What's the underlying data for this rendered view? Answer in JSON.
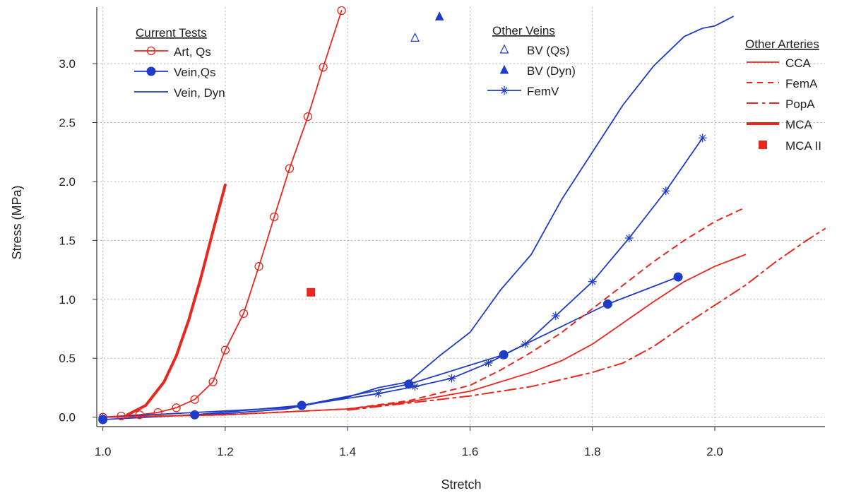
{
  "chart_data": {
    "type": "line",
    "title": "",
    "xlabel": "Stretch",
    "ylabel": "Stress (MPa)",
    "xlim": [
      0.99,
      2.18
    ],
    "ylim": [
      -0.08,
      3.48
    ],
    "xticks": [
      1.0,
      1.2,
      1.4,
      1.6,
      1.8,
      2.0
    ],
    "xtick_labels": [
      "1.0",
      "1.2",
      "1.4",
      "1.6",
      "1.8",
      "2.0"
    ],
    "yticks": [
      0.0,
      0.5,
      1.0,
      1.5,
      2.0,
      2.5,
      3.0
    ],
    "ytick_labels": [
      "0.0",
      "0.5",
      "1.0",
      "1.5",
      "2.0",
      "2.5",
      "3.0"
    ],
    "grid": true,
    "legends": [
      {
        "title": "Current Tests",
        "placement": "top-left",
        "entries": [
          "Art, Qs",
          "Vein,Qs",
          "Vein, Dyn"
        ]
      },
      {
        "title": "Other Veins",
        "placement": "top-center",
        "entries": [
          "BV (Qs)",
          "BV (Dyn)",
          "FemV"
        ]
      },
      {
        "title": "Other Arteries",
        "placement": "top-right",
        "entries": [
          "CCA",
          "FemA",
          "PopA",
          "MCA",
          "MCA II"
        ]
      }
    ],
    "colors": {
      "red": "#e8281e",
      "blue": "#1e3cc8",
      "grid": "#b4b4b4"
    },
    "series": [
      {
        "name": "Art, Qs",
        "color": "#e8281e",
        "style": "line-open-circle",
        "x": [
          1.0,
          1.03,
          1.06,
          1.09,
          1.12,
          1.15,
          1.18,
          1.2,
          1.23,
          1.255,
          1.28,
          1.305,
          1.335,
          1.36,
          1.39
        ],
        "y": [
          0.0,
          0.01,
          0.02,
          0.04,
          0.08,
          0.15,
          0.3,
          0.57,
          0.88,
          1.28,
          1.7,
          2.11,
          2.55,
          2.97,
          3.45
        ],
        "marker_x": [
          1.0,
          1.03,
          1.06,
          1.09,
          1.12,
          1.15,
          1.18,
          1.2,
          1.23,
          1.255,
          1.28,
          1.305,
          1.335,
          1.36,
          1.39
        ],
        "marker_y": [
          0.0,
          0.01,
          0.02,
          0.04,
          0.08,
          0.15,
          0.3,
          0.57,
          0.88,
          1.28,
          1.7,
          2.11,
          2.55,
          2.97,
          3.45
        ]
      },
      {
        "name": "Vein,Qs",
        "color": "#1e3cc8",
        "style": "line-filled-circle",
        "x": [
          1.0,
          1.15,
          1.325,
          1.5,
          1.655,
          1.825,
          1.94
        ],
        "y": [
          -0.02,
          0.02,
          0.1,
          0.28,
          0.53,
          0.96,
          1.19
        ],
        "marker_x": [
          1.0,
          1.15,
          1.325,
          1.5,
          1.655,
          1.825,
          1.94
        ],
        "marker_y": [
          -0.02,
          0.02,
          0.1,
          0.28,
          0.53,
          0.96,
          1.19
        ]
      },
      {
        "name": "Vein, Dyn",
        "color": "#1e3cc8",
        "style": "line",
        "x": [
          1.0,
          1.1,
          1.2,
          1.3,
          1.4,
          1.45,
          1.5,
          1.55,
          1.6,
          1.65,
          1.7,
          1.75,
          1.8,
          1.85,
          1.9,
          1.95,
          1.98,
          2.0,
          2.03
        ],
        "y": [
          0.0,
          0.01,
          0.03,
          0.07,
          0.17,
          0.25,
          0.3,
          0.52,
          0.72,
          1.08,
          1.38,
          1.85,
          2.25,
          2.65,
          2.98,
          3.23,
          3.3,
          3.32,
          3.4
        ]
      },
      {
        "name": "BV (Qs)",
        "color": "#1e3cc8",
        "style": "open-triangle",
        "x": [
          1.51
        ],
        "y": [
          3.22
        ]
      },
      {
        "name": "BV (Dyn)",
        "color": "#1e3cc8",
        "style": "filled-triangle",
        "x": [
          1.55
        ],
        "y": [
          3.4
        ]
      },
      {
        "name": "FemV",
        "color": "#1e3cc8",
        "style": "line-asterisk",
        "x": [
          1.0,
          1.3,
          1.45,
          1.51,
          1.57,
          1.63,
          1.69,
          1.74,
          1.8,
          1.86,
          1.92,
          1.98
        ],
        "y": [
          0.0,
          0.08,
          0.2,
          0.26,
          0.33,
          0.46,
          0.62,
          0.86,
          1.15,
          1.52,
          1.92,
          2.37
        ],
        "marker_x": [
          1.0,
          1.45,
          1.51,
          1.57,
          1.63,
          1.69,
          1.74,
          1.8,
          1.86,
          1.92,
          1.98
        ],
        "marker_y": [
          0.0,
          0.2,
          0.26,
          0.33,
          0.46,
          0.62,
          0.86,
          1.15,
          1.52,
          1.92,
          2.37
        ]
      },
      {
        "name": "CCA",
        "color": "#e8281e",
        "style": "line",
        "x": [
          1.0,
          1.2,
          1.4,
          1.5,
          1.6,
          1.7,
          1.75,
          1.8,
          1.85,
          1.9,
          1.95,
          2.0,
          2.05
        ],
        "y": [
          0.0,
          0.02,
          0.07,
          0.13,
          0.22,
          0.38,
          0.48,
          0.62,
          0.8,
          0.98,
          1.15,
          1.28,
          1.38
        ]
      },
      {
        "name": "FemA",
        "color": "#e8281e",
        "style": "dashed",
        "x": [
          1.0,
          1.2,
          1.4,
          1.5,
          1.6,
          1.65,
          1.7,
          1.75,
          1.8,
          1.85,
          1.9,
          1.95,
          2.0,
          2.05
        ],
        "y": [
          0.0,
          0.02,
          0.07,
          0.14,
          0.27,
          0.4,
          0.55,
          0.72,
          0.92,
          1.12,
          1.32,
          1.5,
          1.66,
          1.78
        ]
      },
      {
        "name": "PopA",
        "color": "#e8281e",
        "style": "dash-dot",
        "x": [
          1.4,
          1.5,
          1.6,
          1.7,
          1.75,
          1.8,
          1.85,
          1.9,
          1.95,
          2.0,
          2.05,
          2.1,
          2.15,
          2.18
        ],
        "y": [
          0.06,
          0.12,
          0.18,
          0.26,
          0.32,
          0.38,
          0.46,
          0.6,
          0.78,
          0.95,
          1.12,
          1.32,
          1.5,
          1.6
        ]
      },
      {
        "name": "MCA",
        "color": "#e8281e",
        "style": "thick-line",
        "x": [
          1.04,
          1.07,
          1.1,
          1.12,
          1.14,
          1.16,
          1.18,
          1.2
        ],
        "y": [
          0.02,
          0.1,
          0.3,
          0.52,
          0.82,
          1.18,
          1.58,
          1.97
        ]
      },
      {
        "name": "MCA II",
        "color": "#e8281e",
        "style": "filled-square",
        "x": [
          1.34
        ],
        "y": [
          1.06
        ]
      }
    ]
  }
}
